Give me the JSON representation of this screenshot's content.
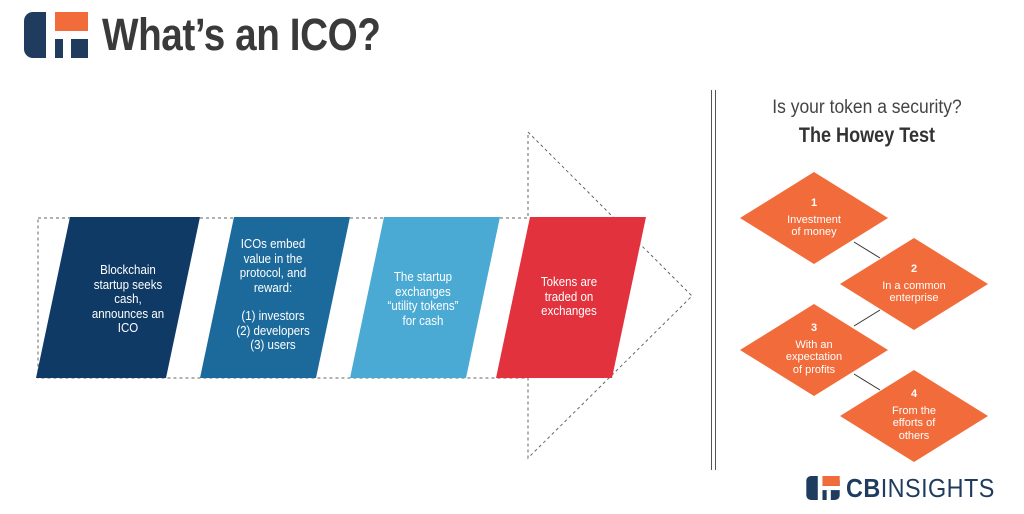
{
  "header": {
    "title": "What’s an ICO?"
  },
  "steps": [
    {
      "lines": [
        "Blockchain",
        "startup seeks",
        "cash,",
        "announces an",
        "ICO"
      ],
      "color": "#0f3a66"
    },
    {
      "lines": [
        "ICOs embed",
        "value in the",
        "protocol, and",
        "reward:",
        "",
        "(1) investors",
        "(2) developers",
        "(3) users"
      ],
      "color": "#1c6a9c"
    },
    {
      "lines": [
        "The startup",
        "exchanges",
        "“utility tokens”",
        "for cash"
      ],
      "color": "#4aaad3"
    },
    {
      "lines": [
        "Tokens are",
        "traded on",
        "exchanges"
      ],
      "color": "#e2323e"
    }
  ],
  "howey": {
    "question": "Is your token a security?",
    "title": "The Howey Test",
    "color": "#f26b3a",
    "criteria": [
      {
        "number": "1",
        "label_lines": [
          "Investment",
          "of money"
        ]
      },
      {
        "number": "2",
        "label_lines": [
          "In a common",
          "enterprise"
        ]
      },
      {
        "number": "3",
        "label_lines": [
          "With an",
          "expectation",
          "of profits"
        ]
      },
      {
        "number": "4",
        "label_lines": [
          "From the",
          "efforts of",
          "others"
        ]
      }
    ]
  },
  "brand": {
    "name_bold": "CB",
    "name_light": "INSIGHTS"
  }
}
